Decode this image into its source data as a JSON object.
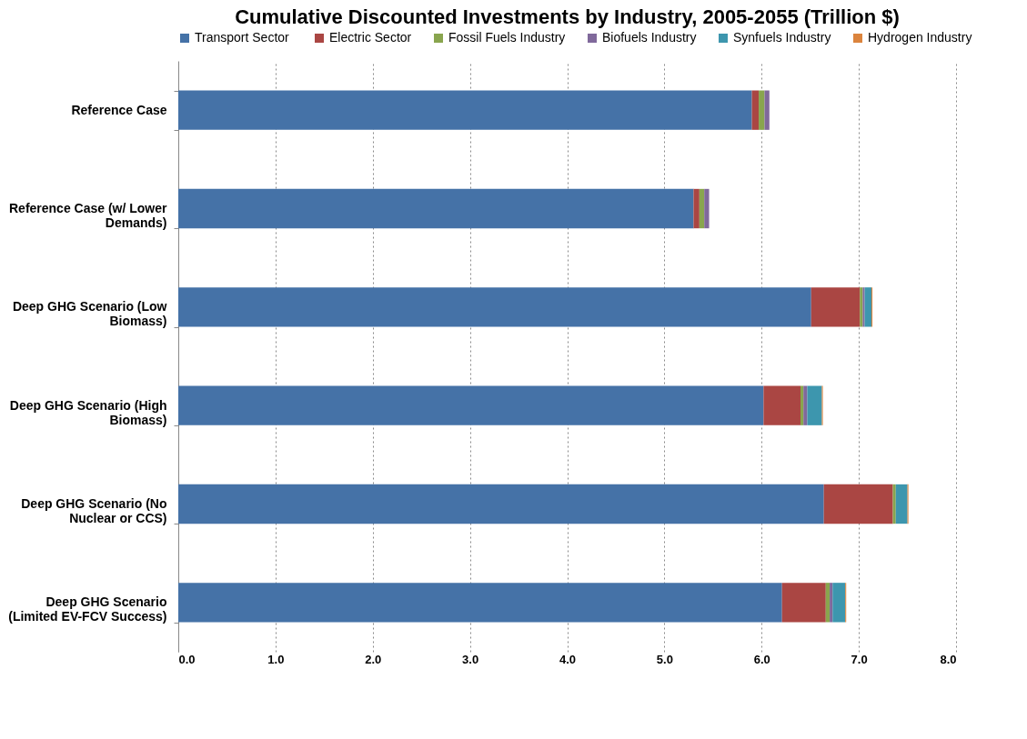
{
  "chart_data": {
    "type": "bar",
    "orientation": "horizontal",
    "stacked": true,
    "title": "Cumulative Discounted Investments by Industry, 2005-2055  (Trillion $)",
    "categories": [
      "Reference Case",
      "Reference Case (w/ Lower Demands)",
      "Deep GHG Scenario (Low Biomass)",
      "Deep GHG Scenario (High Biomass)",
      "Deep GHG Scenario (No Nuclear or CCS)",
      "Deep GHG Scenario (Limited EV-FCV Success)"
    ],
    "series": [
      {
        "name": "Transport  Sector",
        "color": "#4572a7",
        "values": [
          5.9,
          5.3,
          6.51,
          6.02,
          6.64,
          6.21
        ]
      },
      {
        "name": "Electric Sector",
        "color": "#aa4643",
        "values": [
          0.07,
          0.06,
          0.5,
          0.38,
          0.71,
          0.45
        ]
      },
      {
        "name": "Fossil Fuels Industry",
        "color": "#89a54e",
        "values": [
          0.06,
          0.05,
          0.03,
          0.03,
          0.03,
          0.04
        ]
      },
      {
        "name": "Biofuels Industry",
        "color": "#80699b",
        "values": [
          0.05,
          0.05,
          0.02,
          0.04,
          0,
          0.03
        ]
      },
      {
        "name": "Synfuels Industry",
        "color": "#3d96ae",
        "values": [
          0,
          0,
          0.07,
          0.15,
          0.12,
          0.13
        ]
      },
      {
        "name": "Hydrogen Industry",
        "color": "#db843d",
        "values": [
          0,
          0,
          0.01,
          0.01,
          0.01,
          0.01
        ]
      }
    ],
    "xlim": [
      0,
      8
    ],
    "xticks": [
      {
        "value": 0,
        "label": "0.0"
      },
      {
        "value": 1,
        "label": "1.0"
      },
      {
        "value": 2,
        "label": "2.0"
      },
      {
        "value": 3,
        "label": "3.0"
      },
      {
        "value": 4,
        "label": "4.0"
      },
      {
        "value": 5,
        "label": "5.0"
      },
      {
        "value": 6,
        "label": "6.0"
      },
      {
        "value": 7,
        "label": "7.0"
      },
      {
        "value": 8,
        "label": "8.0"
      }
    ],
    "grid": "x",
    "legend": "top"
  }
}
